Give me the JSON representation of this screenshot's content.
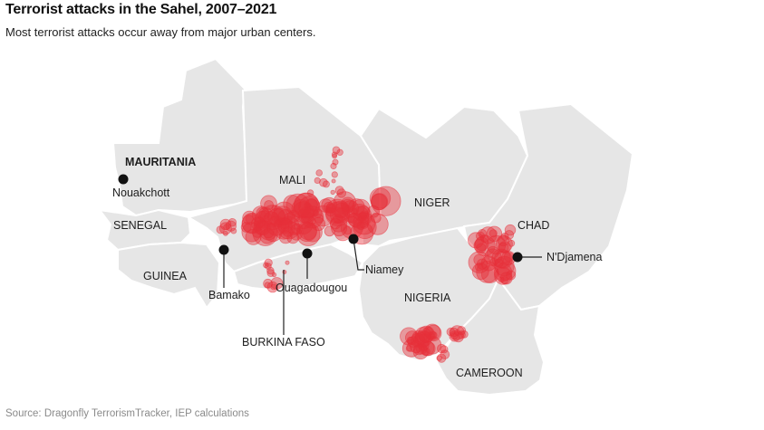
{
  "header": {
    "title": "Terrorist attacks in the Sahel, 2007–2021",
    "subtitle": "Most terrorist attacks occur away from major urban centers."
  },
  "footer": {
    "source": "Source: Dragonfly TerrorismTracker, IEP calculations"
  },
  "map": {
    "countries": [
      "MAURITANIA",
      "MALI",
      "NIGER",
      "CHAD",
      "SENEGAL",
      "GUINEA",
      "BURKINA FASO",
      "NIGERIA",
      "CAMEROON"
    ],
    "capitals": [
      "Nouakchott",
      "Bamako",
      "Ouagadougou",
      "Niamey",
      "N'Djamena"
    ],
    "attack_color": "#e8303a",
    "land_color": "#e6e6e6"
  }
}
